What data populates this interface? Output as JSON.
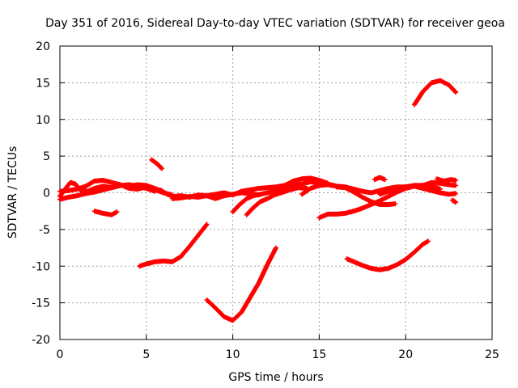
{
  "chart_data": {
    "type": "scatter",
    "title": "Day 351 of 2016, Sidereal Day-to-day VTEC variation (SDTVAR) for receiver geoa",
    "xlabel": "GPS time / hours",
    "ylabel": "SDTVAR / TECUs",
    "xlim": [
      0,
      25
    ],
    "ylim": [
      -20,
      20
    ],
    "xticks": [
      0,
      5,
      10,
      15,
      20,
      25
    ],
    "yticks": [
      -20,
      -15,
      -10,
      -5,
      0,
      5,
      10,
      15,
      20
    ],
    "grid": true,
    "marker_color": "#ff0000",
    "series": [
      {
        "name": "trace-1",
        "points": [
          [
            0.0,
            -0.5
          ],
          [
            0.3,
            0.5
          ],
          [
            0.6,
            1.4
          ],
          [
            0.9,
            1.2
          ],
          [
            1.2,
            0.3
          ],
          [
            1.6,
            0.2
          ],
          [
            2.0,
            0.6
          ],
          [
            2.5,
            0.9
          ],
          [
            3.0,
            0.7
          ],
          [
            3.5,
            1.0
          ],
          [
            4.0,
            0.9
          ],
          [
            4.5,
            1.1
          ],
          [
            5.0,
            1.0
          ],
          [
            5.5,
            0.6
          ],
          [
            6.0,
            0.1
          ]
        ]
      },
      {
        "name": "trace-2",
        "points": [
          [
            0.0,
            0.2
          ],
          [
            0.5,
            0.3
          ],
          [
            1.0,
            0.5
          ],
          [
            1.5,
            0.9
          ],
          [
            2.0,
            1.6
          ],
          [
            2.5,
            1.7
          ],
          [
            3.0,
            1.4
          ],
          [
            3.5,
            1.1
          ],
          [
            4.0,
            0.6
          ],
          [
            4.5,
            0.5
          ],
          [
            5.0,
            0.8
          ],
          [
            5.5,
            0.4
          ],
          [
            6.0,
            0.0
          ],
          [
            6.5,
            -0.3
          ]
        ]
      },
      {
        "name": "trace-3",
        "points": [
          [
            0.0,
            -0.9
          ],
          [
            0.5,
            -0.6
          ],
          [
            1.0,
            -0.4
          ],
          [
            1.5,
            -0.1
          ],
          [
            2.0,
            0.1
          ],
          [
            2.5,
            0.4
          ],
          [
            3.0,
            0.7
          ],
          [
            3.5,
            1.0
          ],
          [
            4.0,
            1.1
          ],
          [
            4.5,
            0.9
          ],
          [
            5.0,
            0.6
          ],
          [
            5.5,
            0.2
          ]
        ]
      },
      {
        "name": "trace-4",
        "points": [
          [
            5.8,
            0.4
          ],
          [
            6.2,
            -0.2
          ],
          [
            6.6,
            -0.5
          ],
          [
            7.0,
            -0.4
          ],
          [
            7.5,
            -0.6
          ],
          [
            8.0,
            -0.3
          ],
          [
            8.5,
            -0.4
          ],
          [
            9.0,
            -0.2
          ],
          [
            9.5,
            0.0
          ],
          [
            10.0,
            -0.3
          ],
          [
            10.5,
            0.2
          ],
          [
            11.0,
            0.4
          ],
          [
            11.5,
            0.6
          ],
          [
            12.0,
            0.7
          ],
          [
            12.5,
            0.8
          ],
          [
            13.0,
            1.0
          ],
          [
            13.5,
            1.6
          ],
          [
            14.0,
            1.9
          ],
          [
            14.5,
            2.0
          ],
          [
            15.0,
            1.7
          ],
          [
            15.5,
            1.3
          ]
        ]
      },
      {
        "name": "trace-5",
        "points": [
          [
            6.5,
            -0.8
          ],
          [
            7.0,
            -0.7
          ],
          [
            7.5,
            -0.5
          ],
          [
            8.0,
            -0.6
          ],
          [
            8.5,
            -0.4
          ],
          [
            9.0,
            -0.8
          ],
          [
            9.5,
            -0.4
          ],
          [
            10.0,
            -0.2
          ],
          [
            10.5,
            0.0
          ],
          [
            11.0,
            -0.1
          ],
          [
            11.5,
            -0.3
          ]
        ]
      },
      {
        "name": "trace-6",
        "points": [
          [
            10.0,
            -2.6
          ],
          [
            10.4,
            -1.6
          ],
          [
            10.8,
            -0.8
          ],
          [
            11.2,
            -0.4
          ],
          [
            11.6,
            -0.2
          ],
          [
            12.0,
            0.0
          ],
          [
            12.5,
            0.3
          ],
          [
            13.0,
            0.7
          ],
          [
            13.5,
            1.0
          ],
          [
            14.0,
            1.2
          ],
          [
            14.5,
            1.5
          ],
          [
            15.0,
            1.3
          ],
          [
            15.5,
            1.2
          ],
          [
            16.0,
            0.9
          ]
        ]
      },
      {
        "name": "trace-7",
        "points": [
          [
            10.8,
            -3.0
          ],
          [
            11.2,
            -2.0
          ],
          [
            11.6,
            -1.2
          ],
          [
            12.0,
            -0.8
          ],
          [
            12.4,
            -0.3
          ],
          [
            12.8,
            0.0
          ],
          [
            13.3,
            0.4
          ],
          [
            13.8,
            0.7
          ],
          [
            14.3,
            0.6
          ]
        ]
      },
      {
        "name": "trace-8",
        "points": [
          [
            14.0,
            -0.2
          ],
          [
            14.5,
            0.6
          ],
          [
            15.0,
            1.0
          ],
          [
            15.5,
            1.1
          ],
          [
            16.0,
            0.9
          ],
          [
            16.5,
            0.8
          ],
          [
            17.0,
            0.5
          ],
          [
            17.5,
            0.2
          ],
          [
            18.0,
            0.0
          ],
          [
            18.5,
            0.3
          ],
          [
            19.0,
            0.6
          ],
          [
            19.5,
            0.8
          ],
          [
            20.0,
            0.8
          ],
          [
            20.5,
            1.0
          ],
          [
            21.0,
            1.0
          ],
          [
            21.5,
            1.4
          ],
          [
            22.0,
            1.3
          ],
          [
            22.5,
            1.1
          ],
          [
            22.9,
            1.0
          ]
        ]
      },
      {
        "name": "trace-9",
        "points": [
          [
            16.0,
            0.8
          ],
          [
            16.5,
            0.7
          ],
          [
            17.0,
            0.1
          ],
          [
            17.5,
            -0.6
          ],
          [
            18.0,
            -1.2
          ],
          [
            18.5,
            -1.6
          ],
          [
            19.0,
            -1.6
          ],
          [
            19.4,
            -1.5
          ]
        ]
      },
      {
        "name": "trace-10",
        "points": [
          [
            18.5,
            -0.2
          ],
          [
            19.0,
            0.2
          ],
          [
            19.5,
            0.4
          ],
          [
            20.0,
            0.7
          ],
          [
            20.5,
            0.9
          ],
          [
            21.0,
            0.6
          ],
          [
            21.5,
            0.3
          ],
          [
            22.0,
            0.0
          ],
          [
            22.5,
            -0.2
          ],
          [
            22.9,
            -0.1
          ]
        ]
      },
      {
        "name": "trace-11",
        "points": [
          [
            18.2,
            1.8
          ],
          [
            18.5,
            2.1
          ],
          [
            18.8,
            1.8
          ]
        ]
      },
      {
        "name": "trace-12",
        "points": [
          [
            21.8,
            1.9
          ],
          [
            22.2,
            1.6
          ],
          [
            22.6,
            1.8
          ],
          [
            22.9,
            1.7
          ]
        ]
      },
      {
        "name": "trace-13",
        "points": [
          [
            22.7,
            -1.0
          ],
          [
            22.9,
            -1.3
          ]
        ]
      },
      {
        "name": "trace-14",
        "points": [
          [
            15.0,
            -3.4
          ],
          [
            15.5,
            -2.9
          ],
          [
            16.0,
            -2.9
          ],
          [
            16.5,
            -2.8
          ],
          [
            17.0,
            -2.5
          ],
          [
            17.5,
            -2.1
          ],
          [
            18.0,
            -1.6
          ],
          [
            18.5,
            -1.1
          ],
          [
            19.0,
            -0.5
          ],
          [
            19.5,
            0.1
          ],
          [
            20.0,
            0.6
          ],
          [
            20.5,
            0.9
          ],
          [
            21.0,
            1.0
          ],
          [
            21.5,
            0.9
          ],
          [
            22.0,
            0.5
          ]
        ]
      },
      {
        "name": "trace-15",
        "points": [
          [
            2.0,
            -2.5
          ],
          [
            2.5,
            -2.8
          ],
          [
            3.0,
            -3.0
          ],
          [
            3.3,
            -2.6
          ]
        ]
      },
      {
        "name": "trace-16",
        "points": [
          [
            5.3,
            4.5
          ],
          [
            5.6,
            4.0
          ],
          [
            5.9,
            3.3
          ]
        ]
      },
      {
        "name": "trace-17",
        "points": [
          [
            4.6,
            -10.0
          ],
          [
            5.0,
            -9.7
          ],
          [
            5.5,
            -9.4
          ],
          [
            6.0,
            -9.3
          ],
          [
            6.5,
            -9.4
          ],
          [
            7.0,
            -8.7
          ],
          [
            7.5,
            -7.3
          ],
          [
            8.0,
            -5.8
          ],
          [
            8.5,
            -4.3
          ]
        ]
      },
      {
        "name": "trace-18",
        "points": [
          [
            8.5,
            -14.6
          ],
          [
            9.0,
            -15.7
          ],
          [
            9.5,
            -16.9
          ],
          [
            10.0,
            -17.4
          ],
          [
            10.5,
            -16.3
          ],
          [
            11.0,
            -14.3
          ],
          [
            11.5,
            -12.3
          ],
          [
            12.0,
            -9.8
          ],
          [
            12.5,
            -7.5
          ]
        ]
      },
      {
        "name": "trace-19",
        "points": [
          [
            16.6,
            -9.0
          ],
          [
            17.0,
            -9.4
          ],
          [
            17.5,
            -9.9
          ],
          [
            18.0,
            -10.3
          ],
          [
            18.5,
            -10.5
          ],
          [
            19.0,
            -10.3
          ],
          [
            19.5,
            -9.8
          ],
          [
            20.0,
            -9.1
          ],
          [
            20.5,
            -8.1
          ],
          [
            21.0,
            -7.0
          ],
          [
            21.3,
            -6.6
          ]
        ]
      },
      {
        "name": "trace-20",
        "points": [
          [
            20.5,
            12.0
          ],
          [
            21.0,
            13.8
          ],
          [
            21.5,
            15.0
          ],
          [
            22.0,
            15.3
          ],
          [
            22.5,
            14.7
          ],
          [
            22.9,
            13.7
          ]
        ]
      }
    ]
  }
}
